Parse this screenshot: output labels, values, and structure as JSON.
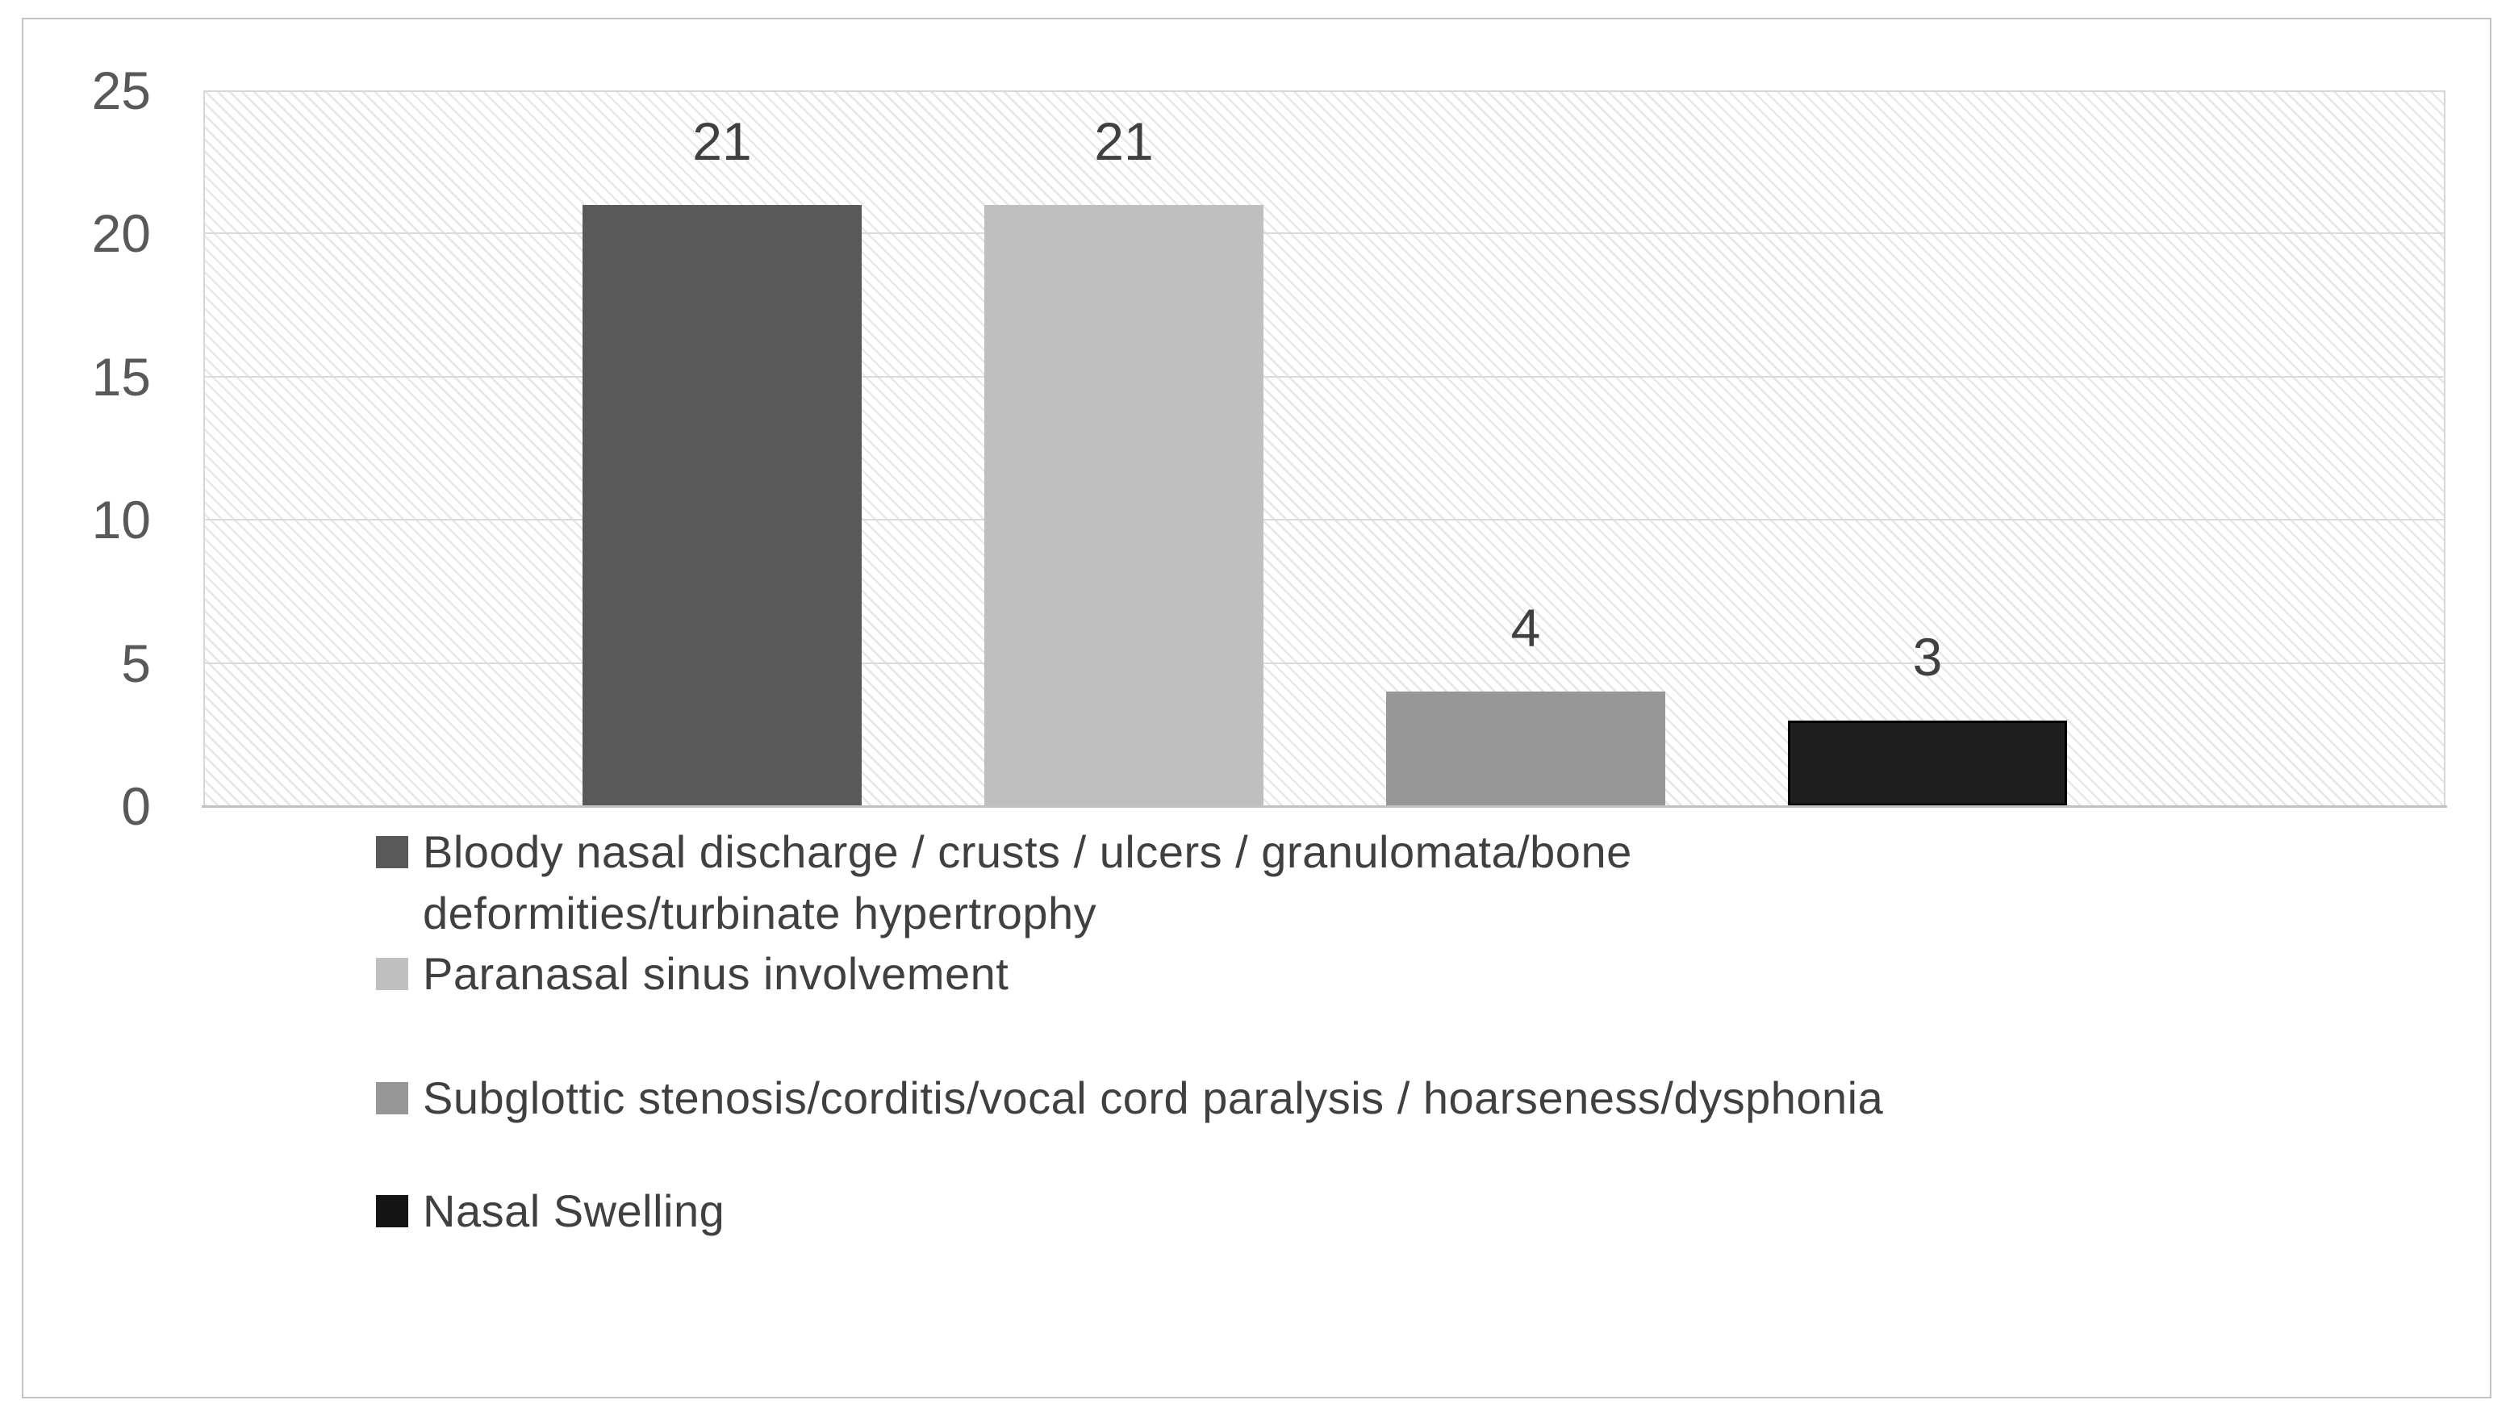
{
  "figure": {
    "background_color": "#ffffff",
    "frame_border_color": "#c3c3c3",
    "plot_pattern": "light-downward-diagonal-hatch",
    "hatch_line_color": "#e8e8e8",
    "gridline_color": "#dadada",
    "axis_line_color": "#c2c2c2",
    "tick_label_color": "#595959",
    "data_label_color": "#404040",
    "legend_text_color": "#404040"
  },
  "chart_data": {
    "type": "bar",
    "title": "",
    "xlabel": "",
    "ylabel": "",
    "categories": [
      ""
    ],
    "series": [
      {
        "name": "Bloody nasal discharge / crusts / ulcers / granulomata/bone deformities/turbinate hypertrophy",
        "value": 21,
        "data_label": "21",
        "color": "#595959",
        "legend_lines": [
          "Bloody nasal discharge / crusts / ulcers / granulomata/bone",
          "deformities/turbinate hypertrophy"
        ]
      },
      {
        "name": "Paranasal sinus involvement",
        "value": 21,
        "data_label": "21",
        "color": "#bfbfbf",
        "legend_lines": [
          "Paranasal sinus involvement"
        ]
      },
      {
        "name": "Subglottic stenosis/corditis/vocal cord paralysis / hoarseness/dysphonia",
        "value": 4,
        "data_label": "4",
        "color": "#979797",
        "legend_lines": [
          "Subglottic stenosis/corditis/vocal cord paralysis / hoarseness/dysphonia"
        ]
      },
      {
        "name": "Nasal Swelling",
        "value": 3,
        "data_label": "3",
        "color": "#1f1f1f",
        "border_color": "#000000",
        "legend_lines": [
          "Nasal Swelling"
        ]
      }
    ],
    "y_axis": {
      "min": 0,
      "max": 25,
      "step": 5,
      "tick_labels": [
        "0",
        "5",
        "10",
        "15",
        "20",
        "25"
      ]
    },
    "grid": true,
    "legend_position": "bottom-left",
    "data_labels_shown": true
  }
}
